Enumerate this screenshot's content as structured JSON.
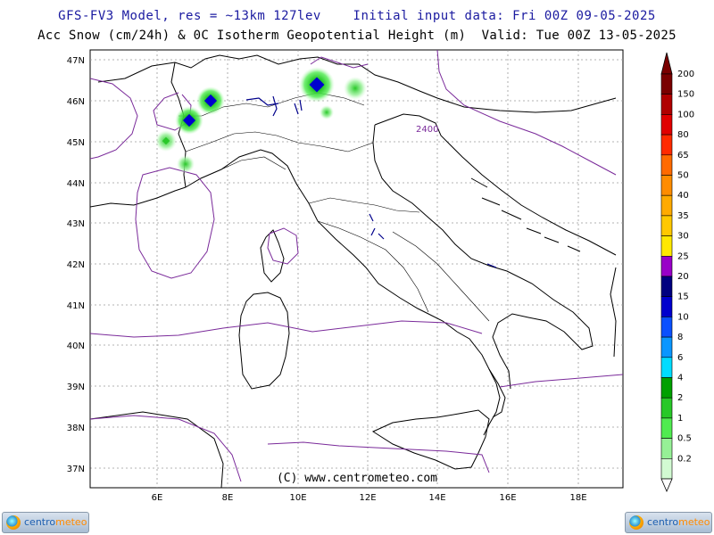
{
  "header": {
    "line1": "GFS-FV3 Model, res = ~13km 127lev    Initial input data: Fri 00Z 09-05-2025",
    "line2": "Acc Snow (cm/24h) & 0C Isotherm Geopotential Height (m)  Valid: Tue 00Z 13-05-2025"
  },
  "map": {
    "lat_labels": [
      "47N",
      "46N",
      "45N",
      "44N",
      "43N",
      "42N",
      "41N",
      "40N",
      "39N",
      "38N",
      "37N"
    ],
    "lon_labels": [
      "6E",
      "8E",
      "10E",
      "12E",
      "14E",
      "16E",
      "18E"
    ],
    "watermark": "(C) www.centrometeo.com",
    "isotherm_label": "2400"
  },
  "legend": {
    "labels": [
      "200",
      "150",
      "100",
      "80",
      "65",
      "50",
      "40",
      "35",
      "30",
      "25",
      "20",
      "15",
      "10",
      "8",
      "6",
      "4",
      "2",
      "1",
      "0.5",
      "0.2"
    ],
    "colors": [
      "#7a0000",
      "#b00000",
      "#e00000",
      "#ff2a00",
      "#ff6a00",
      "#ff8c00",
      "#ffaa00",
      "#ffc800",
      "#ffe800",
      "#9900c8",
      "#000080",
      "#0000cd",
      "#0a50ff",
      "#0a96ff",
      "#00dcff",
      "#00a000",
      "#28c828",
      "#50eb50",
      "#96f096",
      "#d2fad2"
    ]
  },
  "branding": {
    "logo_left": "centrometeo",
    "logo_right": "centrometeo"
  }
}
